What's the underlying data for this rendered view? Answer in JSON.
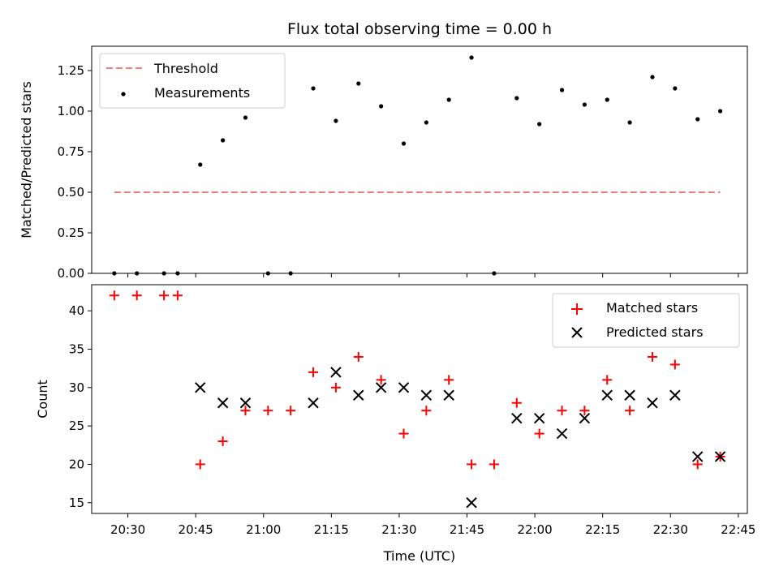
{
  "chart_data": [
    {
      "type": "scatter",
      "title": "Flux total observing time = 0.00 h",
      "xlabel": "",
      "ylabel": "Matched/Predicted stars",
      "xlim": [
        "20:22",
        "22:47"
      ],
      "ylim": [
        0,
        1.4
      ],
      "yticks": [
        "0.00",
        "0.25",
        "0.50",
        "0.75",
        "1.00",
        "1.25"
      ],
      "legend_position": "top-left",
      "grid": false,
      "series": [
        {
          "name": "Threshold",
          "kind": "line",
          "style": "dashed",
          "color": "#f08080",
          "x": [
            "20:27",
            "22:41"
          ],
          "y": [
            0.5,
            0.5
          ]
        },
        {
          "name": "Measurements",
          "kind": "scatter",
          "marker": "dot",
          "color": "#000000",
          "x": [
            "20:27",
            "20:32",
            "20:38",
            "20:41",
            "20:46",
            "20:51",
            "20:56",
            "21:01",
            "21:06",
            "21:11",
            "21:16",
            "21:21",
            "21:26",
            "21:31",
            "21:36",
            "21:41",
            "21:46",
            "21:51",
            "21:56",
            "22:01",
            "22:06",
            "22:11",
            "22:16",
            "22:21",
            "22:26",
            "22:31",
            "22:36",
            "22:41"
          ],
          "y": [
            0,
            0,
            0,
            0,
            0.67,
            0.82,
            0.96,
            0,
            0,
            1.14,
            0.94,
            1.17,
            1.03,
            0.8,
            0.93,
            1.07,
            1.33,
            0,
            1.08,
            0.92,
            1.13,
            1.04,
            1.07,
            0.93,
            1.21,
            1.14,
            0.95,
            1.0
          ]
        }
      ]
    },
    {
      "type": "scatter",
      "title": "",
      "xlabel": "Time (UTC)",
      "ylabel": "Count",
      "xlim": [
        "20:22",
        "22:47"
      ],
      "ylim": [
        13.6,
        43.4
      ],
      "xticks": [
        "20:30",
        "20:45",
        "21:00",
        "21:15",
        "21:30",
        "21:45",
        "22:00",
        "22:15",
        "22:30",
        "22:45"
      ],
      "yticks": [
        "15",
        "20",
        "25",
        "30",
        "35",
        "40"
      ],
      "legend_position": "top-right",
      "grid": false,
      "series": [
        {
          "name": "Matched stars",
          "kind": "scatter",
          "marker": "plus",
          "color": "#ff0000",
          "x": [
            "20:27",
            "20:32",
            "20:38",
            "20:41",
            "20:46",
            "20:51",
            "20:56",
            "21:01",
            "21:06",
            "21:11",
            "21:16",
            "21:21",
            "21:26",
            "21:31",
            "21:36",
            "21:41",
            "21:46",
            "21:51",
            "21:56",
            "22:01",
            "22:06",
            "22:11",
            "22:16",
            "22:21",
            "22:26",
            "22:31",
            "22:36",
            "22:41"
          ],
          "y": [
            42,
            42,
            42,
            42,
            20,
            23,
            27,
            27,
            27,
            32,
            30,
            34,
            31,
            24,
            27,
            31,
            20,
            20,
            28,
            24,
            27,
            27,
            31,
            27,
            34,
            33,
            20,
            21
          ]
        },
        {
          "name": "Predicted stars",
          "kind": "scatter",
          "marker": "cross",
          "color": "#000000",
          "x": [
            "20:46",
            "20:51",
            "20:56",
            "21:11",
            "21:16",
            "21:21",
            "21:26",
            "21:31",
            "21:36",
            "21:41",
            "21:46",
            "21:56",
            "22:01",
            "22:06",
            "22:11",
            "22:16",
            "22:21",
            "22:26",
            "22:31",
            "22:36",
            "22:41"
          ],
          "y": [
            30,
            28,
            28,
            28,
            32,
            29,
            30,
            30,
            29,
            29,
            15,
            26,
            26,
            24,
            26,
            29,
            29,
            28,
            29,
            21,
            21
          ]
        }
      ]
    }
  ]
}
